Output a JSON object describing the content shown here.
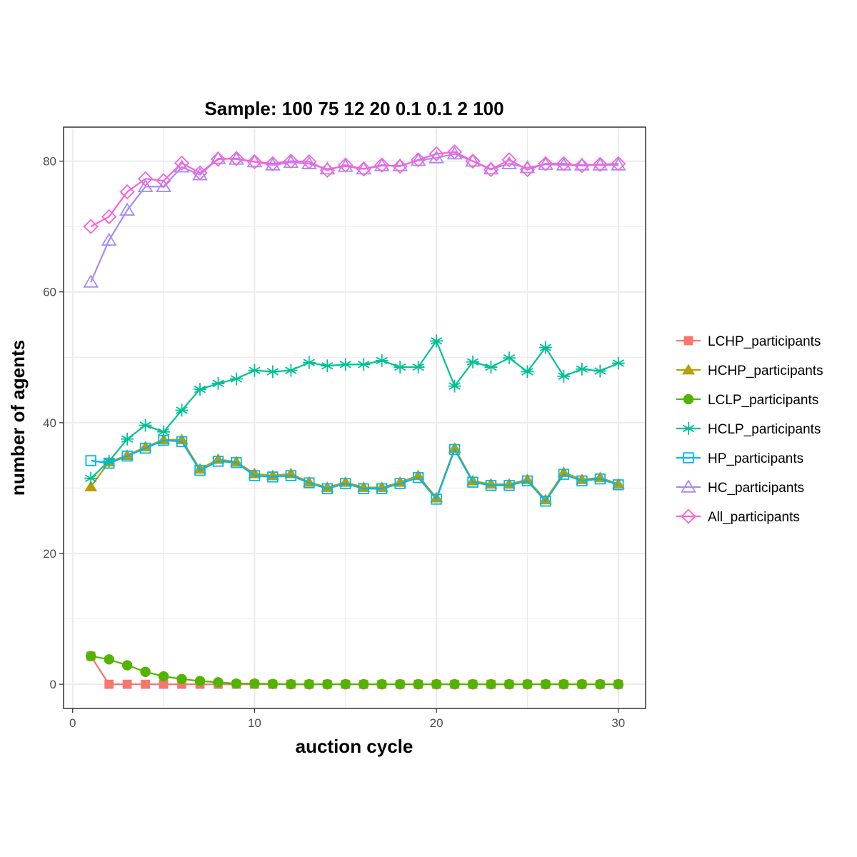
{
  "chart_data": {
    "type": "line",
    "title": "Sample: 100 75 12 20 0.1 0.1 2 100",
    "xlabel": "auction cycle",
    "ylabel": "number of agents",
    "xlim": [
      -0.5,
      31.5
    ],
    "ylim": [
      -3.7,
      85.2
    ],
    "x_ticks": [
      0,
      10,
      20,
      30
    ],
    "y_ticks": [
      0,
      20,
      40,
      60,
      80
    ],
    "x_tick_labels": [
      "0",
      "10",
      "20",
      "30"
    ],
    "y_tick_labels": [
      "0",
      "20",
      "40",
      "60",
      "80"
    ],
    "grid": true,
    "legend_position": "right",
    "x": [
      1,
      2,
      3,
      4,
      5,
      6,
      7,
      8,
      9,
      10,
      11,
      12,
      13,
      14,
      15,
      16,
      17,
      18,
      19,
      20,
      21,
      22,
      23,
      24,
      25,
      26,
      27,
      28,
      29,
      30
    ],
    "series": [
      {
        "name": "LCHP_participants",
        "color": "#F8766D",
        "marker": "square-filled",
        "values": [
          4.3,
          0,
          0,
          0,
          0,
          0,
          0,
          0,
          0,
          0,
          0,
          0,
          0,
          0,
          0,
          0,
          0,
          0,
          0,
          0,
          0,
          0,
          0,
          0,
          0,
          0,
          0,
          0,
          0,
          0
        ]
      },
      {
        "name": "HCHP_participants",
        "color": "#B79F00",
        "marker": "triangle-filled",
        "values": [
          30.2,
          34.0,
          35.0,
          36.3,
          37.4,
          37.4,
          32.9,
          34.4,
          34.0,
          32.2,
          31.9,
          32.2,
          30.9,
          30.1,
          30.9,
          30.1,
          30.1,
          30.9,
          31.9,
          28.5,
          36.1,
          31.1,
          30.6,
          30.6,
          31.3,
          28.2,
          32.4,
          31.3,
          31.6,
          30.6
        ]
      },
      {
        "name": "LCLP_participants",
        "color": "#53B400",
        "marker": "circle-filled",
        "values": [
          4.3,
          3.8,
          2.9,
          1.9,
          1.2,
          0.8,
          0.5,
          0.3,
          0.1,
          0.1,
          0.05,
          0,
          0,
          0,
          0,
          0,
          0,
          0,
          0,
          0,
          0,
          0,
          0,
          0,
          0,
          0,
          0,
          0,
          0,
          0
        ]
      },
      {
        "name": "HCLP_participants",
        "color": "#00C094",
        "marker": "asterisk",
        "values": [
          31.5,
          34.1,
          37.5,
          39.6,
          38.6,
          41.9,
          45.1,
          46.0,
          46.7,
          48.0,
          47.8,
          48.0,
          49.2,
          48.7,
          48.9,
          48.9,
          49.5,
          48.5,
          48.5,
          52.5,
          45.6,
          49.3,
          48.5,
          49.9,
          47.8,
          51.5,
          47.1,
          48.2,
          47.9,
          49.1
        ]
      },
      {
        "name": "HP_participants",
        "color": "#00B6EB",
        "marker": "square-open",
        "values": [
          34.2,
          33.8,
          34.9,
          36.1,
          37.3,
          37.1,
          32.7,
          34.1,
          33.9,
          31.9,
          31.7,
          31.9,
          30.8,
          29.9,
          30.7,
          29.9,
          29.9,
          30.7,
          31.6,
          28.3,
          35.9,
          30.9,
          30.4,
          30.4,
          31.1,
          28.0,
          32.1,
          31.1,
          31.4,
          30.5
        ]
      },
      {
        "name": "HC_participants",
        "color": "#A58AFF",
        "marker": "triangle-open",
        "values": [
          61.5,
          67.9,
          72.5,
          76.1,
          76.1,
          79.1,
          77.9,
          80.4,
          80.3,
          79.9,
          79.4,
          79.8,
          79.6,
          78.8,
          79.2,
          78.8,
          79.3,
          79.3,
          80.1,
          80.5,
          81.1,
          80.0,
          78.8,
          79.6,
          79.0,
          79.5,
          79.4,
          79.4,
          79.4,
          79.4
        ]
      },
      {
        "name": "All_participants",
        "color": "#FB61D7",
        "marker": "diamond-open",
        "values": [
          70.0,
          71.5,
          75.3,
          77.3,
          77.0,
          79.7,
          78.2,
          80.3,
          80.4,
          79.9,
          79.6,
          80.0,
          79.9,
          78.6,
          79.4,
          78.8,
          79.4,
          79.2,
          80.2,
          81.1,
          81.4,
          80.0,
          78.7,
          80.2,
          78.7,
          79.6,
          79.6,
          79.3,
          79.5,
          79.6
        ]
      }
    ]
  }
}
